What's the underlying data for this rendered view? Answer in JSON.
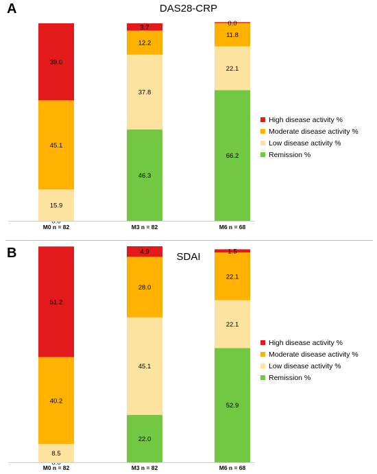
{
  "colors": {
    "high": "#e31a1c",
    "moderate": "#ffb300",
    "low": "#fde3a0",
    "remission": "#72c842"
  },
  "legend": [
    {
      "key": "high",
      "label": "High disease activity %"
    },
    {
      "key": "moderate",
      "label": "Moderate disease activity %"
    },
    {
      "key": "low",
      "label": "Low disease activity %"
    },
    {
      "key": "remission",
      "label": "Remission %"
    }
  ],
  "chart_data": [
    {
      "panel": "A",
      "type": "bar",
      "stacked": true,
      "title": "DAS28-CRP",
      "categories": [
        "M0 n = 82",
        "M3 n = 82",
        "M6 n = 68"
      ],
      "series": [
        {
          "name": "Remission %",
          "key": "remission",
          "values": [
            0.0,
            46.3,
            66.2
          ]
        },
        {
          "name": "Low disease activity %",
          "key": "low",
          "values": [
            15.9,
            37.8,
            22.1
          ]
        },
        {
          "name": "Moderate disease activity %",
          "key": "moderate",
          "values": [
            45.1,
            12.2,
            11.8
          ]
        },
        {
          "name": "High disease activity %",
          "key": "high",
          "values": [
            39.0,
            3.7,
            0.0
          ]
        }
      ],
      "legend_position": "right",
      "ylim": [
        0,
        100
      ]
    },
    {
      "panel": "B",
      "type": "bar",
      "stacked": true,
      "title": "SDAI",
      "categories": [
        "M0 n = 82",
        "M3 n = 82",
        "M6 n = 68"
      ],
      "series": [
        {
          "name": "Remission %",
          "key": "remission",
          "values": [
            0.0,
            22.0,
            52.9
          ]
        },
        {
          "name": "Low disease activity %",
          "key": "low",
          "values": [
            8.5,
            45.1,
            22.1
          ]
        },
        {
          "name": "Moderate disease activity %",
          "key": "moderate",
          "values": [
            40.2,
            28.0,
            22.1
          ]
        },
        {
          "name": "High disease activity %",
          "key": "high",
          "values": [
            51.2,
            4.9,
            1.5
          ]
        }
      ],
      "legend_position": "right",
      "ylim": [
        0,
        100
      ]
    }
  ]
}
